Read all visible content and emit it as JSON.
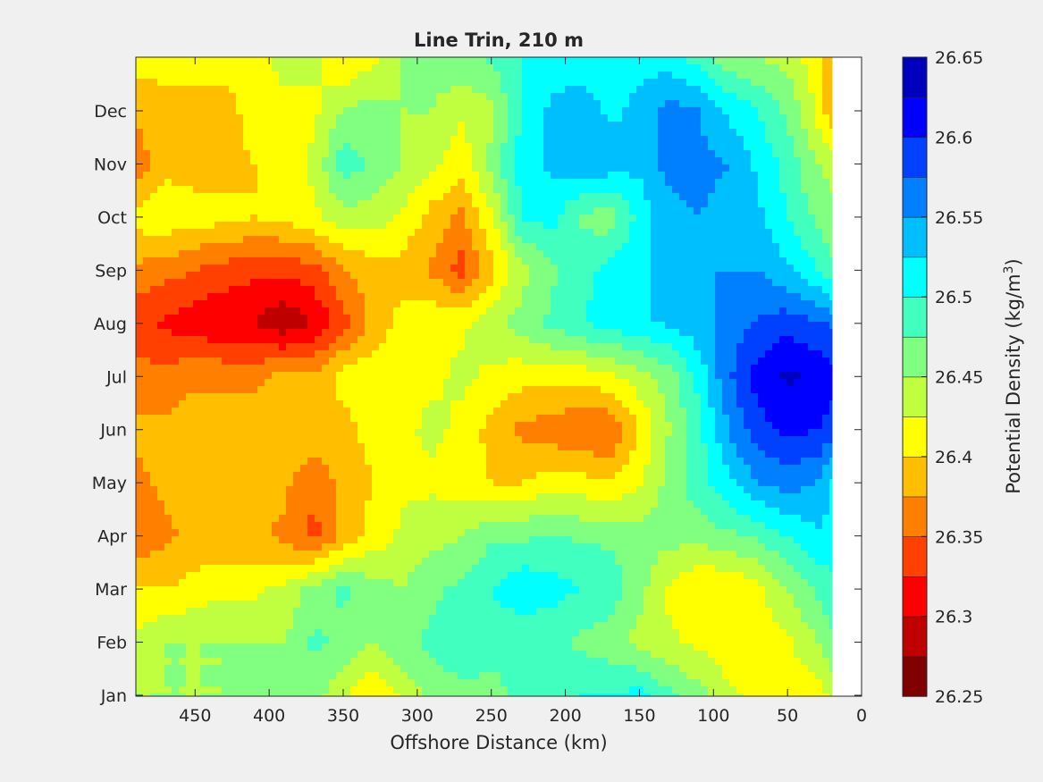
{
  "chart_data": {
    "type": "heatmap",
    "subtype": "filled-contour",
    "title": "Line Trin, 210 m",
    "xlabel": "Offshore Distance (km)",
    "ylabel": "",
    "xlim": [
      490,
      0
    ],
    "x_reversed": true,
    "x_ticks": [
      450,
      400,
      350,
      300,
      250,
      200,
      150,
      100,
      50,
      0
    ],
    "y_ticks": [
      "Jan",
      "Feb",
      "Mar",
      "Apr",
      "May",
      "Jun",
      "Jul",
      "Aug",
      "Sep",
      "Oct",
      "Nov",
      "Dec"
    ],
    "data_extent_km": [
      490,
      20
    ],
    "colorbar": {
      "label": "Potential Density (kg/m",
      "label_superscript": "3",
      "label_suffix": ")",
      "range": [
        26.25,
        26.65
      ],
      "ticks": [
        "26.25",
        "26.3",
        "26.35",
        "26.4",
        "26.45",
        "26.5",
        "26.55",
        "26.6",
        "26.65"
      ],
      "levels": [
        26.25,
        26.275,
        26.3,
        26.325,
        26.35,
        26.375,
        26.4,
        26.425,
        26.45,
        26.475,
        26.5,
        26.525,
        26.55,
        26.575,
        26.6,
        26.625,
        26.65
      ],
      "colors": [
        "#800000",
        "#bf0000",
        "#ff0000",
        "#ff4000",
        "#ff8000",
        "#ffbf00",
        "#ffff00",
        "#bfff40",
        "#80ff80",
        "#40ffbf",
        "#00ffff",
        "#00bfff",
        "#0080ff",
        "#0040ff",
        "#0000ff",
        "#0000bf"
      ]
    },
    "grid_x_km": [
      490,
      470,
      450,
      430,
      410,
      390,
      370,
      350,
      330,
      310,
      290,
      270,
      250,
      230,
      210,
      190,
      170,
      150,
      130,
      110,
      90,
      70,
      50,
      30,
      20
    ],
    "grid_y_month": [
      0,
      1,
      2,
      3,
      4,
      5,
      6,
      7,
      8,
      9,
      10,
      11,
      12
    ],
    "values": [
      [
        26.45,
        26.45,
        26.45,
        26.45,
        26.47,
        26.45,
        26.46,
        26.43,
        26.4,
        26.43,
        26.46,
        26.47,
        26.47,
        26.48,
        26.48,
        26.5,
        26.5,
        26.51,
        26.48,
        26.46,
        26.43,
        26.42,
        26.41,
        26.41,
        26.43
      ],
      [
        26.43,
        26.45,
        26.45,
        26.45,
        26.45,
        26.45,
        26.48,
        26.47,
        26.45,
        26.47,
        26.48,
        26.49,
        26.48,
        26.48,
        26.48,
        26.47,
        26.46,
        26.44,
        26.43,
        26.42,
        26.41,
        26.41,
        26.42,
        26.45,
        26.47
      ],
      [
        26.4,
        26.4,
        26.41,
        26.42,
        26.42,
        26.43,
        26.46,
        26.48,
        26.46,
        26.45,
        26.47,
        26.48,
        26.5,
        26.52,
        26.51,
        26.5,
        26.49,
        26.46,
        26.42,
        26.4,
        26.4,
        26.42,
        26.45,
        26.48,
        26.49
      ],
      [
        26.35,
        26.37,
        26.38,
        26.38,
        26.38,
        26.37,
        26.34,
        26.38,
        26.41,
        26.43,
        26.44,
        26.45,
        26.47,
        26.47,
        26.48,
        26.47,
        26.47,
        26.46,
        26.46,
        26.46,
        26.47,
        26.48,
        26.5,
        26.52,
        26.52
      ],
      [
        26.37,
        26.38,
        26.39,
        26.39,
        26.39,
        26.38,
        26.36,
        26.38,
        26.4,
        26.42,
        26.42,
        26.41,
        26.4,
        26.4,
        26.41,
        26.41,
        26.4,
        26.42,
        26.46,
        26.49,
        26.52,
        26.55,
        26.56,
        26.55,
        26.52
      ],
      [
        26.38,
        26.38,
        26.39,
        26.39,
        26.39,
        26.39,
        26.39,
        26.39,
        26.41,
        26.42,
        26.43,
        26.42,
        26.39,
        26.37,
        26.36,
        26.35,
        26.35,
        26.4,
        26.45,
        26.49,
        26.55,
        26.59,
        26.61,
        26.6,
        26.59
      ],
      [
        26.36,
        26.36,
        26.37,
        26.37,
        26.37,
        26.38,
        26.38,
        26.41,
        26.42,
        26.42,
        26.42,
        26.43,
        26.42,
        26.41,
        26.41,
        26.41,
        26.42,
        26.44,
        26.46,
        26.51,
        26.57,
        26.61,
        26.63,
        26.62,
        26.61
      ],
      [
        26.33,
        26.32,
        26.31,
        26.3,
        26.3,
        26.28,
        26.3,
        26.34,
        26.38,
        26.41,
        26.42,
        26.42,
        26.44,
        26.46,
        26.48,
        26.5,
        26.51,
        26.52,
        26.53,
        26.54,
        26.56,
        26.58,
        26.59,
        26.58,
        26.57
      ],
      [
        26.37,
        26.36,
        26.35,
        26.34,
        26.33,
        26.33,
        26.34,
        26.37,
        26.39,
        26.39,
        26.37,
        26.34,
        26.39,
        26.44,
        26.47,
        26.49,
        26.51,
        26.52,
        26.53,
        26.55,
        26.55,
        26.55,
        26.53,
        26.5,
        26.48
      ],
      [
        26.41,
        26.42,
        26.41,
        26.41,
        26.4,
        26.41,
        26.42,
        26.44,
        26.44,
        26.42,
        26.39,
        26.37,
        26.42,
        26.5,
        26.51,
        26.47,
        26.46,
        26.51,
        26.54,
        26.55,
        26.54,
        26.53,
        26.5,
        26.47,
        26.46
      ],
      [
        26.36,
        26.39,
        26.39,
        26.39,
        26.4,
        26.41,
        26.43,
        26.49,
        26.47,
        26.45,
        26.43,
        26.41,
        26.46,
        26.51,
        26.53,
        26.55,
        26.54,
        26.53,
        26.56,
        26.56,
        26.55,
        26.52,
        26.49,
        26.45,
        26.44
      ],
      [
        26.38,
        26.39,
        26.38,
        26.38,
        26.42,
        26.42,
        26.42,
        26.45,
        26.46,
        26.45,
        26.45,
        26.43,
        26.44,
        26.5,
        26.53,
        26.54,
        26.52,
        26.53,
        26.56,
        26.55,
        26.52,
        26.5,
        26.47,
        26.42,
        26.38
      ],
      [
        26.41,
        26.41,
        26.42,
        26.42,
        26.42,
        26.43,
        26.43,
        26.4,
        26.42,
        26.45,
        26.46,
        26.47,
        26.48,
        26.5,
        26.51,
        26.51,
        26.51,
        26.52,
        26.51,
        26.49,
        26.46,
        26.45,
        26.44,
        26.41,
        26.39
      ]
    ]
  }
}
